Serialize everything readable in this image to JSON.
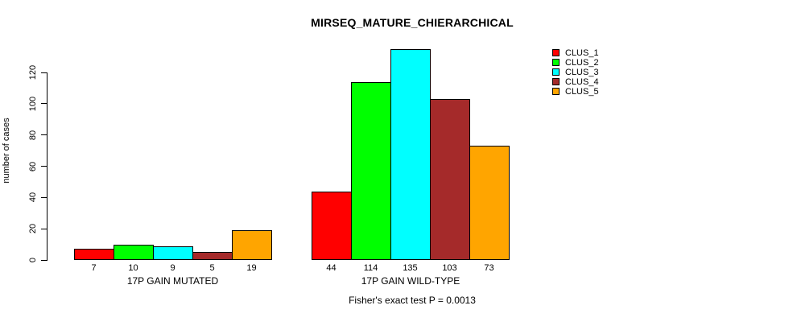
{
  "page": {
    "background": "#ffffff"
  },
  "chart_data": {
    "type": "bar",
    "title": "MIRSEQ_MATURE_CHIERARCHICAL",
    "ylabel": "number of cases",
    "xlabel": "",
    "yticks": [
      0,
      20,
      40,
      60,
      80,
      100,
      120
    ],
    "ylim": [
      0,
      135
    ],
    "grid": false,
    "legend_position": "top-right",
    "series": [
      {
        "name": "CLUS_1",
        "color": "#FF0000"
      },
      {
        "name": "CLUS_2",
        "color": "#00FF00"
      },
      {
        "name": "CLUS_3",
        "color": "#00FFFF"
      },
      {
        "name": "CLUS_4",
        "color": "#A52A2A"
      },
      {
        "name": "CLUS_5",
        "color": "#FFA500"
      }
    ],
    "groups": [
      {
        "label": "17P GAIN MUTATED",
        "values": [
          7,
          10,
          9,
          5,
          19
        ]
      },
      {
        "label": "17P GAIN WILD-TYPE",
        "values": [
          44,
          114,
          135,
          103,
          73
        ]
      }
    ],
    "bar_value_labels_shown": true,
    "subtitle": "Fisher's exact test P = 0.0013"
  }
}
